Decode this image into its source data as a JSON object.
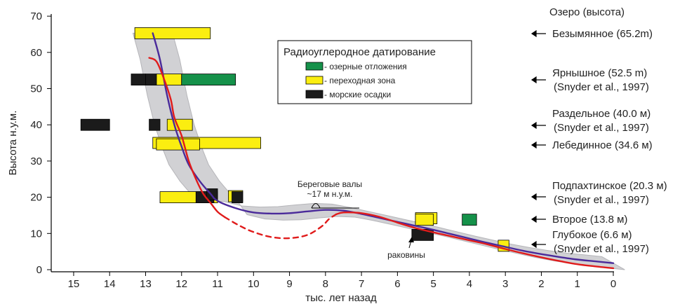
{
  "chart_data": {
    "type": "scatter",
    "xlabel": "тыс. лет назад",
    "ylabel": "Высота н.у.м.",
    "xlim": [
      15,
      0
    ],
    "ylim": [
      0,
      70
    ],
    "x_ticks": [
      15,
      14,
      13,
      12,
      11,
      10,
      9,
      8,
      7,
      6,
      5,
      4,
      3,
      2,
      1,
      0
    ],
    "y_ticks": [
      0,
      10,
      20,
      30,
      40,
      50,
      60,
      70
    ],
    "legend": {
      "title": "Радиоуглеродное датирование",
      "placement": "top-center",
      "items": [
        {
          "label": "- озерные отложения",
          "color": "#15914a"
        },
        {
          "label": "- переходная зона",
          "color": "#fbee10"
        },
        {
          "label": "- морские осадки",
          "color": "#1b1b1b"
        }
      ]
    },
    "lakes_header": "Озеро  (высота)",
    "lakes": [
      {
        "name": "Безымянное (65.2m)",
        "ref": "",
        "elevation": 65.2
      },
      {
        "name": "Ярнышное (52.5 m)",
        "ref": "(Snyder et al., 1997)",
        "elevation": 52.5
      },
      {
        "name": "Раздельное (40.0 м)",
        "ref": "(Snyder et al., 1997)",
        "elevation": 40.0
      },
      {
        "name": "Лебединное (34.6 м)",
        "ref": "",
        "elevation": 34.6
      },
      {
        "name": "Подпахтинское (20.3 м)",
        "ref": "(Snyder et al., 1997)",
        "elevation": 20.3
      },
      {
        "name": "Второе (13.8 м)",
        "ref": "",
        "elevation": 13.8
      },
      {
        "name": "Глубокое (6.6 м)",
        "ref": "(Snyder et al., 1997)",
        "elevation": 6.6
      }
    ],
    "annotations": {
      "beach_ridges": "Береговые валы",
      "beach_ridges_elev": "~17 м н.у.м.",
      "shells": "раковины"
    },
    "samples": {
      "lake": [
        [
          10.5,
          12.0,
          52.5
        ],
        [
          4.2,
          3.8,
          13.8
        ]
      ],
      "transition": [
        [
          13.3,
          11.2,
          65.3
        ],
        [
          12.7,
          12.0,
          52.5
        ],
        [
          12.8,
          9.8,
          35.0
        ],
        [
          12.7,
          11.5,
          34.6
        ],
        [
          12.4,
          11.7,
          40.0
        ],
        [
          12.6,
          11.0,
          20.0
        ],
        [
          10.7,
          10.3,
          20.3
        ],
        [
          5.5,
          4.9,
          14.2
        ],
        [
          5.5,
          5.0,
          13.8
        ],
        [
          3.2,
          2.9,
          6.6
        ]
      ],
      "marine": [
        [
          14.8,
          14.0,
          40.0
        ],
        [
          13.4,
          13.0,
          52.5
        ],
        [
          13.0,
          12.7,
          52.5
        ],
        [
          12.9,
          12.6,
          40.0
        ],
        [
          11.6,
          11.1,
          20.0
        ],
        [
          11.3,
          11.0,
          20.8
        ],
        [
          10.6,
          10.3,
          20.0
        ],
        [
          5.6,
          5.0,
          9.6
        ]
      ]
    },
    "series": [
      {
        "color": "#4a2a9a",
        "points": [
          [
            12.8,
            65.3
          ],
          [
            12.6,
            58
          ],
          [
            12.4,
            48
          ],
          [
            12.2,
            40
          ],
          [
            12.0,
            34
          ],
          [
            11.8,
            29
          ],
          [
            11.5,
            24.5
          ],
          [
            11.2,
            21.0
          ],
          [
            11.0,
            19.0
          ],
          [
            10.5,
            17.0
          ],
          [
            10.0,
            15.8
          ],
          [
            9.5,
            15.5
          ],
          [
            9.0,
            15.6
          ],
          [
            8.5,
            16.1
          ],
          [
            8.0,
            16.5
          ],
          [
            7.5,
            16.3
          ],
          [
            7.0,
            15.4
          ],
          [
            6.5,
            14.3
          ],
          [
            6.0,
            13.2
          ],
          [
            5.5,
            12.1
          ],
          [
            5.0,
            11.0
          ],
          [
            4.5,
            9.8
          ],
          [
            4.0,
            8.6
          ],
          [
            3.5,
            7.4
          ],
          [
            3.0,
            6.3
          ],
          [
            2.5,
            5.2
          ],
          [
            2.0,
            4.3
          ],
          [
            1.5,
            3.5
          ],
          [
            1.0,
            2.8
          ],
          [
            0.5,
            2.3
          ],
          [
            0.0,
            1.8
          ]
        ]
      },
      {
        "color": "#e01b1b",
        "points": [
          [
            12.9,
            58.5
          ],
          [
            12.7,
            57.5
          ],
          [
            12.5,
            53
          ],
          [
            12.3,
            47
          ],
          [
            12.2,
            42
          ],
          [
            12.0,
            37
          ],
          [
            11.8,
            30
          ],
          [
            11.6,
            25
          ],
          [
            11.4,
            21
          ],
          [
            11.2,
            18.5
          ],
          [
            11.0,
            16
          ],
          [
            10.8,
            14.5
          ]
        ]
      },
      {
        "color": "#e01b1b",
        "dashed": true,
        "points": [
          [
            10.8,
            14.5
          ],
          [
            10.4,
            12.2
          ],
          [
            10.0,
            10.4
          ],
          [
            9.5,
            9.0
          ],
          [
            9.0,
            8.7
          ],
          [
            8.5,
            9.6
          ],
          [
            8.1,
            12.0
          ],
          [
            7.9,
            14.0
          ],
          [
            7.7,
            15.3
          ]
        ]
      },
      {
        "color": "#e01b1b",
        "points": [
          [
            7.7,
            15.3
          ],
          [
            7.5,
            15.8
          ],
          [
            7.0,
            15.6
          ],
          [
            6.5,
            14.6
          ],
          [
            6.0,
            13.0
          ],
          [
            5.5,
            11.5
          ],
          [
            5.0,
            10.3
          ],
          [
            4.5,
            9.2
          ],
          [
            4.0,
            8.1
          ],
          [
            3.5,
            7.0
          ],
          [
            3.0,
            5.7
          ],
          [
            2.5,
            4.5
          ],
          [
            2.0,
            3.4
          ],
          [
            1.5,
            2.4
          ],
          [
            1.0,
            1.5
          ],
          [
            0.5,
            0.9
          ],
          [
            0.0,
            0.4
          ]
        ]
      }
    ]
  }
}
